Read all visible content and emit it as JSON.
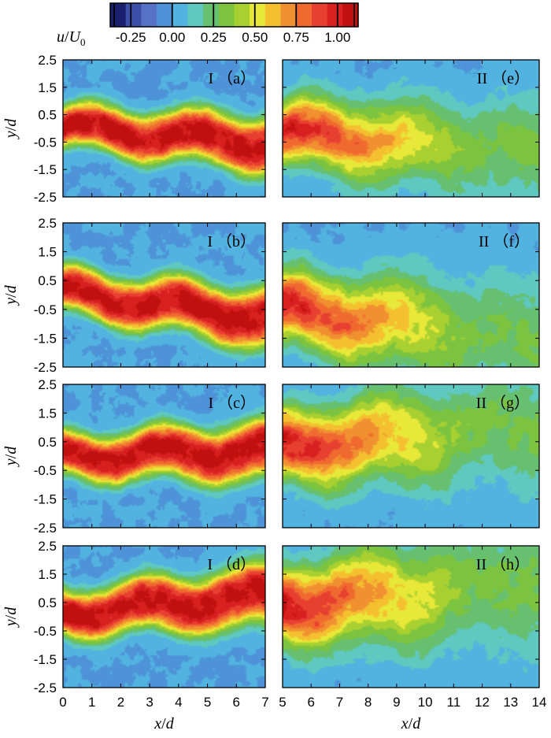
{
  "colorbar": {
    "label_html": "u/U0",
    "label_var": "u",
    "label_slash": "/",
    "label_U": "U",
    "label_sub": "0",
    "ticks": [
      "-0.25",
      "0.00",
      "0.25",
      "0.50",
      "0.75",
      "1.00"
    ],
    "tick_values": [
      -0.25,
      0.0,
      0.25,
      0.5,
      0.75,
      1.0
    ],
    "range": [
      -0.375,
      1.125
    ],
    "stops": [
      "#1a1f6e",
      "#3c4fa8",
      "#5572c4",
      "#4e93d8",
      "#52b3e0",
      "#5fc8c0",
      "#66c070",
      "#7cc440",
      "#a8d030",
      "#e8e838",
      "#f5c030",
      "#f09030",
      "#f06a30",
      "#e84030",
      "#d82020",
      "#c01010"
    ]
  },
  "chart_data": [
    {
      "type": "heatmap",
      "panel": "a",
      "label": "I （a）",
      "field": "u/U0",
      "xlabel": "",
      "ylabel": "y/d",
      "xlim": [
        0,
        7
      ],
      "ylim": [
        -2.5,
        2.5
      ],
      "jet": {
        "x0": 0.0,
        "x1": 7.0,
        "y0": 0.05,
        "y1": -0.55,
        "w": 0.75
      }
    },
    {
      "type": "heatmap",
      "panel": "b",
      "label": "I （b）",
      "field": "u/U0",
      "xlabel": "",
      "ylabel": "y/d",
      "xlim": [
        0,
        7
      ],
      "ylim": [
        -2.5,
        2.5
      ],
      "jet": {
        "x0": 0.0,
        "x1": 7.0,
        "y0": 0.1,
        "y1": -0.8,
        "w": 0.75
      }
    },
    {
      "type": "heatmap",
      "panel": "c",
      "label": "I （c）",
      "field": "u/U0",
      "xlabel": "",
      "ylabel": "y/d",
      "xlim": [
        0,
        7
      ],
      "ylim": [
        -2.5,
        2.5
      ],
      "jet": {
        "x0": 0.0,
        "x1": 7.0,
        "y0": 0.0,
        "y1": 0.15,
        "w": 0.75
      }
    },
    {
      "type": "heatmap",
      "panel": "d",
      "label": "I （d）",
      "field": "u/U0",
      "xlabel": "x/d",
      "ylabel": "y/d",
      "xlim": [
        0,
        7
      ],
      "ylim": [
        -2.5,
        2.5
      ],
      "jet": {
        "x0": 0.0,
        "x1": 7.0,
        "y0": 0.15,
        "y1": 0.7,
        "w": 0.8
      }
    },
    {
      "type": "heatmap",
      "panel": "e",
      "label": "II （e）",
      "field": "u/U0",
      "xlabel": "",
      "ylabel": "",
      "xlim": [
        5,
        14
      ],
      "ylim": [
        -2.5,
        2.5
      ],
      "jet": {
        "x0": 5.0,
        "x1": 14.0,
        "y0": -0.15,
        "y1": -0.9,
        "w": 1.6
      }
    },
    {
      "type": "heatmap",
      "panel": "f",
      "label": "II （f）",
      "field": "u/U0",
      "xlabel": "",
      "ylabel": "",
      "xlim": [
        5,
        14
      ],
      "ylim": [
        -2.5,
        2.5
      ],
      "jet": {
        "x0": 5.0,
        "x1": 14.0,
        "y0": -0.5,
        "y1": -1.6,
        "w": 1.7
      }
    },
    {
      "type": "heatmap",
      "panel": "g",
      "label": "II （g）",
      "field": "u/U0",
      "xlabel": "",
      "ylabel": "",
      "xlim": [
        5,
        14
      ],
      "ylim": [
        -2.5,
        2.5
      ],
      "jet": {
        "x0": 5.0,
        "x1": 14.0,
        "y0": 0.3,
        "y1": 1.0,
        "w": 1.7
      }
    },
    {
      "type": "heatmap",
      "panel": "h",
      "label": "II （h）",
      "field": "u/U0",
      "xlabel": "x/d",
      "ylabel": "",
      "xlim": [
        5,
        14
      ],
      "ylim": [
        -2.5,
        2.5
      ],
      "jet": {
        "x0": 5.0,
        "x1": 14.0,
        "y0": 0.4,
        "y1": 1.2,
        "w": 1.9
      }
    }
  ],
  "axes": {
    "y_ticks": [
      2.5,
      1.5,
      0.5,
      -0.5,
      -1.5,
      -2.5
    ],
    "y_tick_labels": [
      "2.5",
      "1.5",
      "0.5",
      "-0.5",
      "-1.5",
      "-2.5"
    ],
    "x_left_ticks": [
      "0",
      "1",
      "2",
      "3",
      "4",
      "5",
      "6",
      "7"
    ],
    "x_right_ticks": [
      "5",
      "6",
      "7",
      "8",
      "9",
      "10",
      "11",
      "12",
      "13",
      "14"
    ]
  }
}
